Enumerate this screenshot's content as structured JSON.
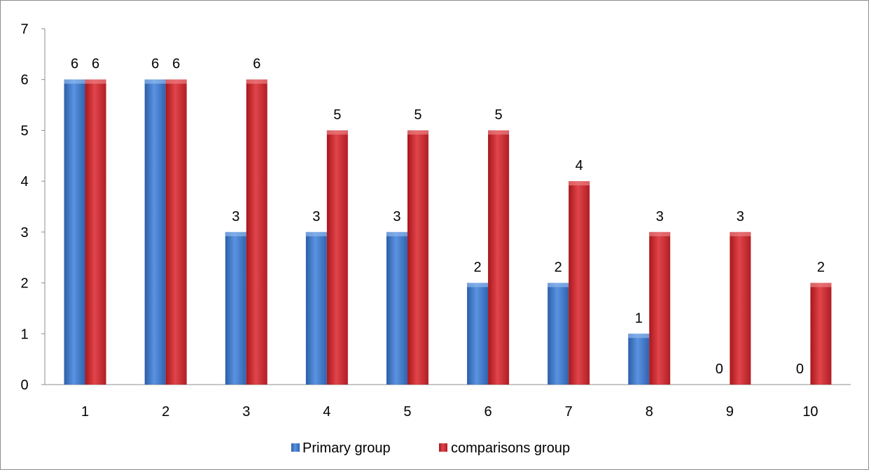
{
  "chart_data": {
    "type": "bar",
    "title": "",
    "xlabel": "",
    "ylabel": "",
    "categories": [
      "1",
      "2",
      "3",
      "4",
      "5",
      "6",
      "7",
      "8",
      "9",
      "10"
    ],
    "series": [
      {
        "name": "Primary group",
        "values": [
          6,
          6,
          3,
          3,
          3,
          2,
          2,
          1,
          0,
          0
        ],
        "color": "#3a6fbf"
      },
      {
        "name": "comparisons group",
        "values": [
          6,
          6,
          6,
          5,
          5,
          5,
          4,
          3,
          3,
          2
        ],
        "color": "#c0272d"
      }
    ],
    "ylim": [
      0,
      7
    ],
    "yticks": [
      "0",
      "1",
      "2",
      "3",
      "4",
      "5",
      "6",
      "7"
    ],
    "grid": false,
    "data_labels": true,
    "legend_position": "bottom"
  }
}
